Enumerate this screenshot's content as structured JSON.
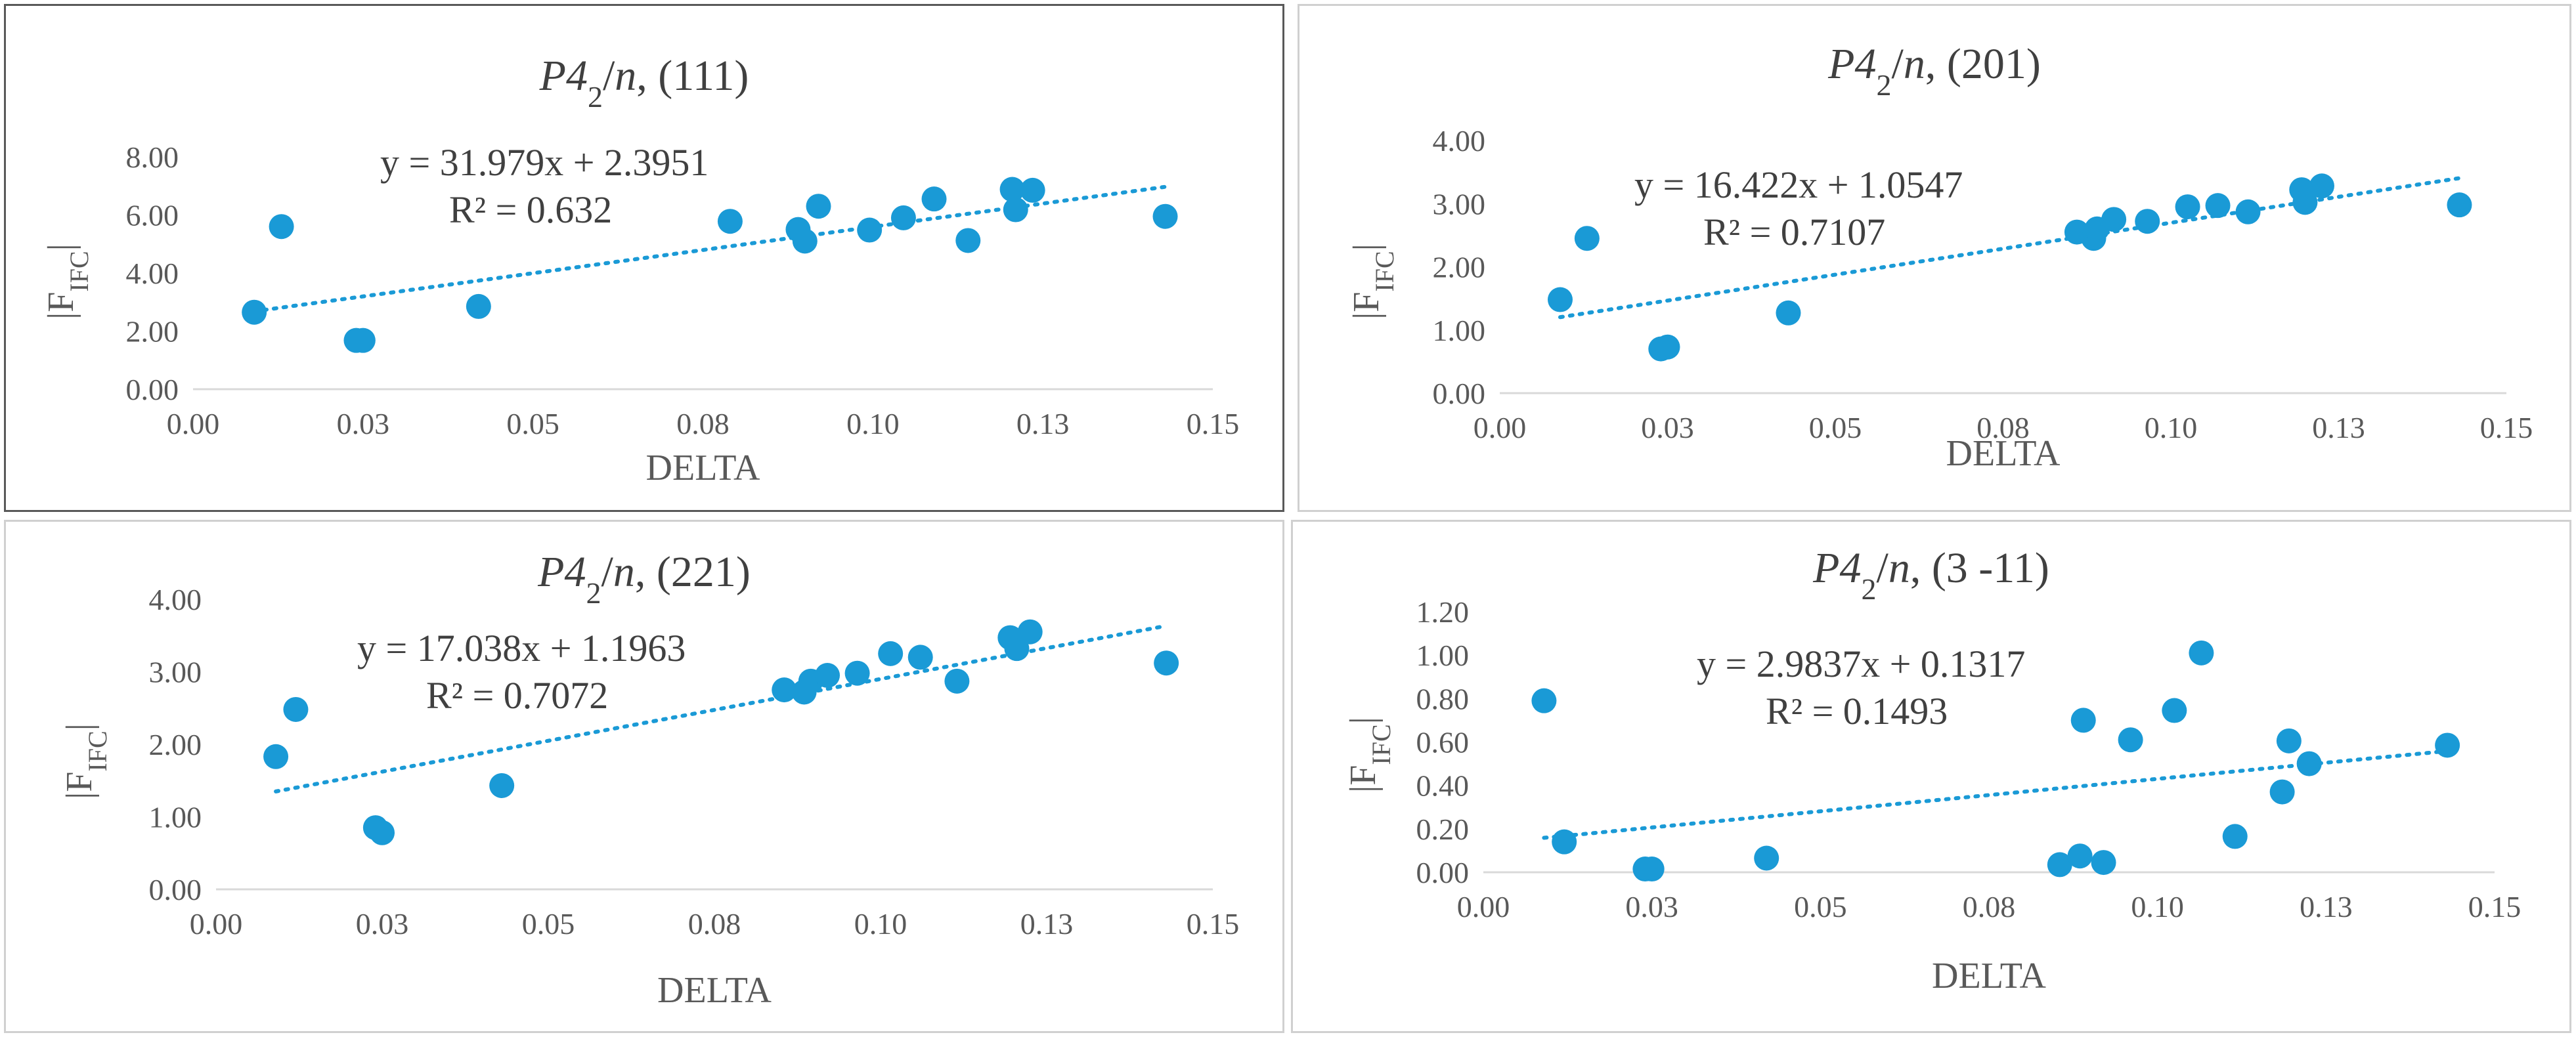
{
  "chart_data": [
    {
      "type": "scatter",
      "title": {
        "prefix": "P4",
        "sub": "2",
        "slash": "/",
        "n": "n",
        "rest": ", (111)"
      },
      "xlabel": "DELTA",
      "ylabel": {
        "main": "|F",
        "sub": "IFC",
        "end": "|"
      },
      "xlim": [
        0,
        0.15
      ],
      "ylim": [
        0,
        8
      ],
      "xticks": [
        "0.00",
        "0.03",
        "0.05",
        "0.08",
        "0.10",
        "0.13",
        "0.15"
      ],
      "yticks": [
        "0.00",
        "2.00",
        "4.00",
        "6.00",
        "8.00"
      ],
      "equation": "y = 31.979x + 2.3951",
      "r2": "R² = 0.632",
      "trend": {
        "slope": 31.979,
        "intercept": 2.3951,
        "x0": 0.009,
        "x1": 0.143
      },
      "x": [
        0.009,
        0.013,
        0.024,
        0.025,
        0.042,
        0.079,
        0.089,
        0.09,
        0.092,
        0.0995,
        0.1045,
        0.109,
        0.114,
        0.1205,
        0.121,
        0.1235,
        0.143
      ],
      "y": [
        2.65,
        5.6,
        1.68,
        1.68,
        2.85,
        5.78,
        5.5,
        5.1,
        6.3,
        5.48,
        5.9,
        6.55,
        5.12,
        6.88,
        6.18,
        6.85,
        5.95
      ]
    },
    {
      "type": "scatter",
      "title": {
        "prefix": "P4",
        "sub": "2",
        "slash": "/",
        "n": "n",
        "rest": ", (201)"
      },
      "xlabel": "DELTA",
      "ylabel": {
        "main": "|F",
        "sub": "IFC",
        "end": "|"
      },
      "xlim": [
        0,
        0.15
      ],
      "ylim": [
        0,
        4
      ],
      "xticks": [
        "0.00",
        "0.03",
        "0.05",
        "0.08",
        "0.10",
        "0.13",
        "0.15"
      ],
      "yticks": [
        "0.00",
        "1.00",
        "2.00",
        "3.00",
        "4.00"
      ],
      "equation": "y = 16.422x + 1.0547",
      "r2": "R² = 0.7107",
      "trend": {
        "slope": 16.422,
        "intercept": 1.0547,
        "x0": 0.009,
        "x1": 0.143
      },
      "x": [
        0.009,
        0.013,
        0.024,
        0.025,
        0.043,
        0.086,
        0.0885,
        0.089,
        0.0915,
        0.0965,
        0.1025,
        0.107,
        0.1115,
        0.1195,
        0.12,
        0.1225,
        0.143
      ],
      "y": [
        1.48,
        2.45,
        0.7,
        0.73,
        1.27,
        2.55,
        2.45,
        2.6,
        2.75,
        2.72,
        2.95,
        2.97,
        2.87,
        3.22,
        3.02,
        3.28,
        2.98
      ]
    },
    {
      "type": "scatter",
      "title": {
        "prefix": "P4",
        "sub": "2",
        "slash": "/",
        "n": "n",
        "rest": ", (221)"
      },
      "xlabel": "DELTA",
      "ylabel": {
        "main": "|F",
        "sub": "IFC",
        "end": "|"
      },
      "xlim": [
        0,
        0.15
      ],
      "ylim": [
        0,
        4
      ],
      "xticks": [
        "0.00",
        "0.03",
        "0.05",
        "0.08",
        "0.10",
        "0.13",
        "0.15"
      ],
      "yticks": [
        "0.00",
        "1.00",
        "2.00",
        "3.00",
        "4.00"
      ],
      "equation": "y = 17.038x + 1.1963",
      "r2": "R² = 0.7072",
      "trend": {
        "slope": 17.038,
        "intercept": 1.1963,
        "x0": 0.009,
        "x1": 0.143
      },
      "x": [
        0.009,
        0.012,
        0.024,
        0.025,
        0.043,
        0.0855,
        0.0885,
        0.0895,
        0.092,
        0.0965,
        0.1015,
        0.106,
        0.1115,
        0.1195,
        0.1205,
        0.1225,
        0.143
      ],
      "y": [
        1.83,
        2.48,
        0.85,
        0.78,
        1.43,
        2.75,
        2.72,
        2.87,
        2.95,
        2.98,
        3.25,
        3.2,
        2.87,
        3.47,
        3.32,
        3.55,
        3.12
      ]
    },
    {
      "type": "scatter",
      "title": {
        "prefix": "P4",
        "sub": "2",
        "slash": "/",
        "n": "n",
        "rest": ", (3 -11)"
      },
      "xlabel": "DELTA",
      "ylabel": {
        "main": "|F",
        "sub": "IFC",
        "end": "|"
      },
      "xlim": [
        0,
        0.15
      ],
      "ylim": [
        0,
        1.2
      ],
      "xticks": [
        "0.00",
        "0.03",
        "0.05",
        "0.08",
        "0.10",
        "0.13",
        "0.15"
      ],
      "yticks": [
        "0.00",
        "0.20",
        "0.40",
        "0.60",
        "0.80",
        "1.00",
        "1.20"
      ],
      "equation": "y = 2.9837x + 0.1317",
      "r2": "R² = 0.1493",
      "trend": {
        "slope": 2.9837,
        "intercept": 0.1317,
        "x0": 0.009,
        "x1": 0.143
      },
      "x": [
        0.009,
        0.012,
        0.024,
        0.025,
        0.042,
        0.0855,
        0.0885,
        0.089,
        0.092,
        0.096,
        0.1025,
        0.1065,
        0.1115,
        0.1185,
        0.1195,
        0.1225,
        0.143
      ],
      "y": [
        0.79,
        0.14,
        0.015,
        0.015,
        0.065,
        0.035,
        0.075,
        0.7,
        0.045,
        0.61,
        0.745,
        1.01,
        0.165,
        0.37,
        0.605,
        0.5,
        0.585
      ]
    }
  ]
}
